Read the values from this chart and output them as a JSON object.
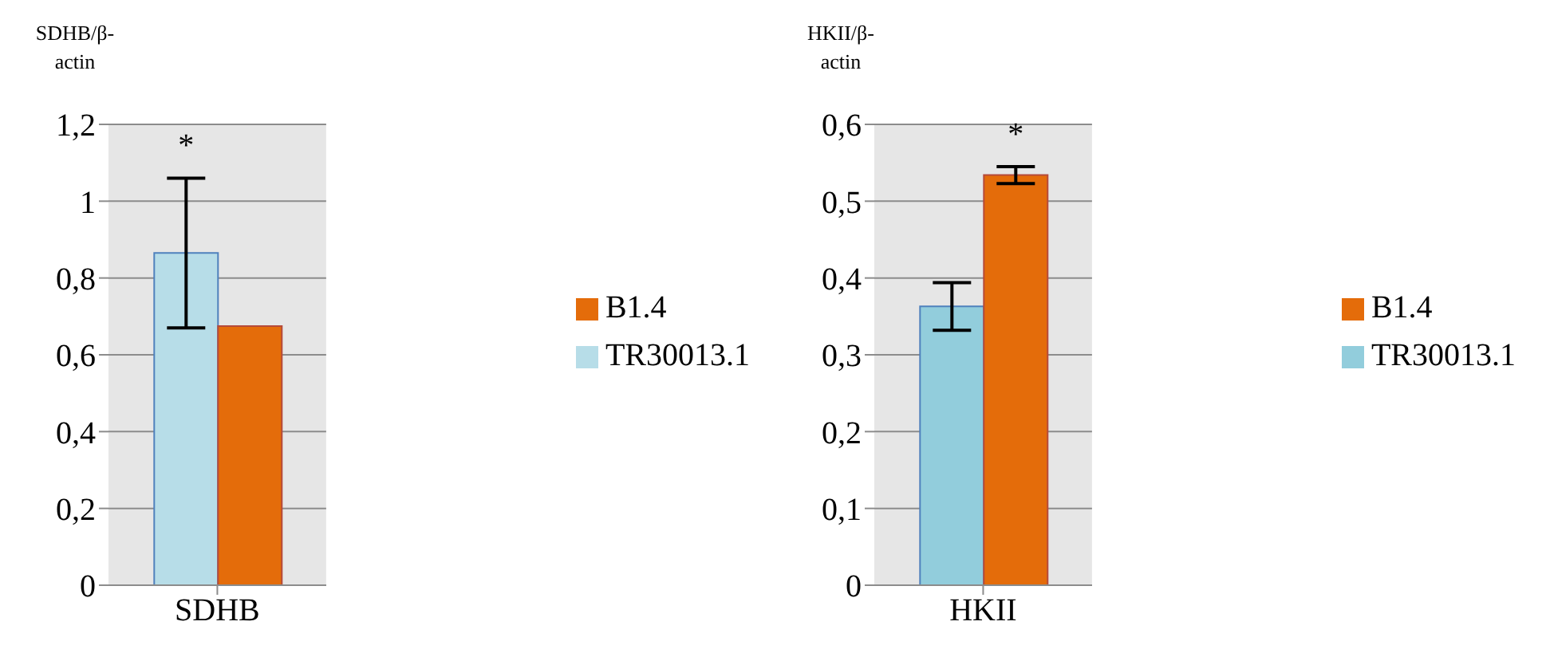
{
  "chart_data": [
    {
      "type": "bar",
      "ylabel": "SDHB/β-actin",
      "categories": [
        "SDHB"
      ],
      "series": [
        {
          "name": "TR30013.1",
          "color": "#b7dde8",
          "values": [
            0.865
          ],
          "errors": [
            0.195
          ]
        },
        {
          "name": "B1.4",
          "color": "#e46c0a",
          "values": [
            0.675
          ]
        }
      ],
      "ylim": [
        0,
        1.2
      ],
      "yticks": [
        {
          "value": 0,
          "label": "0"
        },
        {
          "value": 0.2,
          "label": "0,2"
        },
        {
          "value": 0.4,
          "label": "0,4"
        },
        {
          "value": 0.6,
          "label": "0,6"
        },
        {
          "value": 0.8,
          "label": "0,8"
        },
        {
          "value": 1,
          "label": "1"
        },
        {
          "value": 1.2,
          "label": "1,2"
        }
      ],
      "grid": "y",
      "legend": "right",
      "annotations": [
        "*"
      ]
    },
    {
      "type": "bar",
      "ylabel": "HKII/β-actin",
      "categories": [
        "HKII"
      ],
      "series": [
        {
          "name": "TR30013.1",
          "color": "#92cddc",
          "values": [
            0.363
          ],
          "errors": [
            0.031
          ]
        },
        {
          "name": "B1.4",
          "color": "#e46c0a",
          "values": [
            0.534
          ],
          "errors": [
            0.011
          ]
        }
      ],
      "ylim": [
        0,
        0.6
      ],
      "yticks": [
        {
          "value": 0,
          "label": "0"
        },
        {
          "value": 0.1,
          "label": "0,1"
        },
        {
          "value": 0.2,
          "label": "0,2"
        },
        {
          "value": 0.3,
          "label": "0,3"
        },
        {
          "value": 0.4,
          "label": "0,4"
        },
        {
          "value": 0.5,
          "label": "0,5"
        },
        {
          "value": 0.6,
          "label": "0,6"
        }
      ],
      "grid": "y",
      "legend": "right",
      "annotations": [
        "*"
      ]
    }
  ]
}
